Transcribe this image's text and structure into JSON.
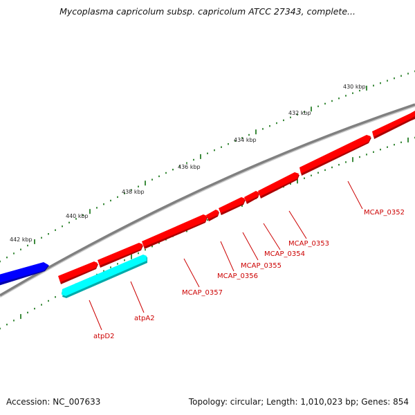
{
  "header": {
    "title": "Mycoplasma capricolum subsp. capricolum ATCC 27343, complete..."
  },
  "footer": {
    "accession": "Accession: NC_007633",
    "summary": "Topology: circular; Length: 1,010,023 bp; Genes: 854"
  },
  "scale": {
    "labels": [
      "430 kbp",
      "432 kbp",
      "434 kbp",
      "436 kbp",
      "438 kbp",
      "440 kbp",
      "442 kbp"
    ]
  },
  "genes": [
    {
      "label": "MCAP_0352",
      "strand": "forward",
      "color": "#ff0000"
    },
    {
      "label": "MCAP_0353",
      "strand": "forward",
      "color": "#ff0000"
    },
    {
      "label": "MCAP_0354",
      "strand": "forward",
      "color": "#ff0000"
    },
    {
      "label": "MCAP_0355",
      "strand": "forward",
      "color": "#ff0000"
    },
    {
      "label": "MCAP_0356",
      "strand": "forward",
      "color": "#ff0000"
    },
    {
      "label": "MCAP_0357",
      "strand": "forward",
      "color": "#ff0000"
    },
    {
      "label": "atpA2",
      "strand": "forward",
      "color": "#ff0000"
    },
    {
      "label": "atpD2",
      "strand": "reverse",
      "color": "#00ffff"
    }
  ],
  "colors": {
    "forward_cds": "#ff0000",
    "reverse_cds": "#00ffff",
    "other_feature": "#0000ff",
    "backbone": "#808080",
    "ticks": "#0b6e0b"
  }
}
